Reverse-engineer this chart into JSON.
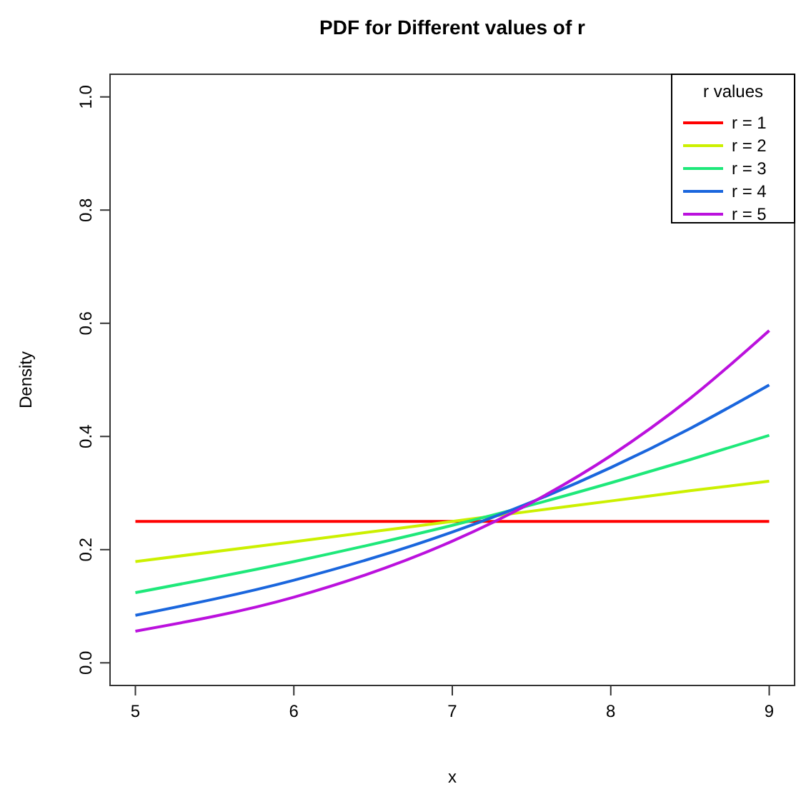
{
  "chart_data": {
    "type": "line",
    "title": "PDF for Different values of r",
    "xlabel": "x",
    "ylabel": "Density",
    "legend_title": "r values",
    "legend": "top right",
    "x": [
      5,
      6,
      7,
      7.5,
      8,
      8.5,
      9
    ],
    "series": [
      {
        "name": "r = 1",
        "color": "#ff0000",
        "values": [
          0.25,
          0.25,
          0.25,
          0.25,
          0.25,
          0.25,
          0.25
        ]
      },
      {
        "name": "r = 2",
        "color": "#ccf000",
        "values": [
          0.179,
          0.214,
          0.25,
          0.268,
          0.286,
          0.304,
          0.321
        ]
      },
      {
        "name": "r = 3",
        "color": "#1ee87a",
        "values": [
          0.124,
          0.179,
          0.243,
          0.279,
          0.318,
          0.359,
          0.402
        ]
      },
      {
        "name": "r = 4",
        "color": "#1a66dd",
        "values": [
          0.084,
          0.146,
          0.231,
          0.284,
          0.345,
          0.414,
          0.491
        ]
      },
      {
        "name": "r = 5",
        "color": "#bb11dd",
        "values": [
          0.056,
          0.116,
          0.215,
          0.283,
          0.366,
          0.467,
          0.587
        ]
      }
    ],
    "xlim": [
      4.84,
      9.16
    ],
    "xticks": [
      5,
      6,
      7,
      8,
      9
    ],
    "ylim": [
      -0.04,
      1.04
    ],
    "yticks": [
      {
        "value": 0,
        "label": "0.0"
      },
      {
        "value": 0.2,
        "label": "0.2"
      },
      {
        "value": 0.4,
        "label": "0.4"
      },
      {
        "value": 0.6,
        "label": "0.6"
      },
      {
        "value": 0.8,
        "label": "0.8"
      },
      {
        "value": 1,
        "label": "1.0"
      }
    ],
    "grid": false
  }
}
